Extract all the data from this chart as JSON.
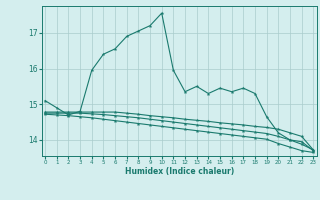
{
  "xlabel": "Humidex (Indice chaleur)",
  "x_values": [
    0,
    1,
    2,
    3,
    4,
    5,
    6,
    7,
    8,
    9,
    10,
    11,
    12,
    13,
    14,
    15,
    16,
    17,
    18,
    19,
    20,
    21,
    22,
    23
  ],
  "line1_y": [
    15.1,
    14.9,
    14.7,
    14.8,
    15.95,
    16.4,
    16.55,
    16.9,
    17.05,
    17.2,
    17.55,
    15.95,
    15.35,
    15.5,
    15.3,
    15.45,
    15.35,
    15.45,
    15.3,
    14.65,
    14.2,
    14.0,
    13.95,
    13.7
  ],
  "line2_y": [
    14.78,
    14.78,
    14.78,
    14.78,
    14.78,
    14.78,
    14.78,
    14.75,
    14.72,
    14.68,
    14.65,
    14.62,
    14.58,
    14.55,
    14.52,
    14.48,
    14.45,
    14.42,
    14.38,
    14.35,
    14.3,
    14.2,
    14.1,
    13.72
  ],
  "line3_y": [
    14.75,
    14.75,
    14.75,
    14.75,
    14.73,
    14.71,
    14.68,
    14.65,
    14.62,
    14.58,
    14.54,
    14.5,
    14.46,
    14.42,
    14.38,
    14.34,
    14.3,
    14.26,
    14.22,
    14.18,
    14.1,
    14.0,
    13.88,
    13.72
  ],
  "line4_y": [
    14.72,
    14.7,
    14.68,
    14.65,
    14.62,
    14.58,
    14.54,
    14.5,
    14.46,
    14.42,
    14.38,
    14.34,
    14.3,
    14.26,
    14.22,
    14.18,
    14.14,
    14.1,
    14.06,
    14.02,
    13.9,
    13.8,
    13.7,
    13.65
  ],
  "line_color": "#1a7a6e",
  "bg_color": "#d4eeee",
  "grid_color": "#aacccc",
  "ylim": [
    13.55,
    17.75
  ],
  "yticks": [
    14,
    15,
    16,
    17
  ],
  "xlim": [
    -0.3,
    23.3
  ]
}
